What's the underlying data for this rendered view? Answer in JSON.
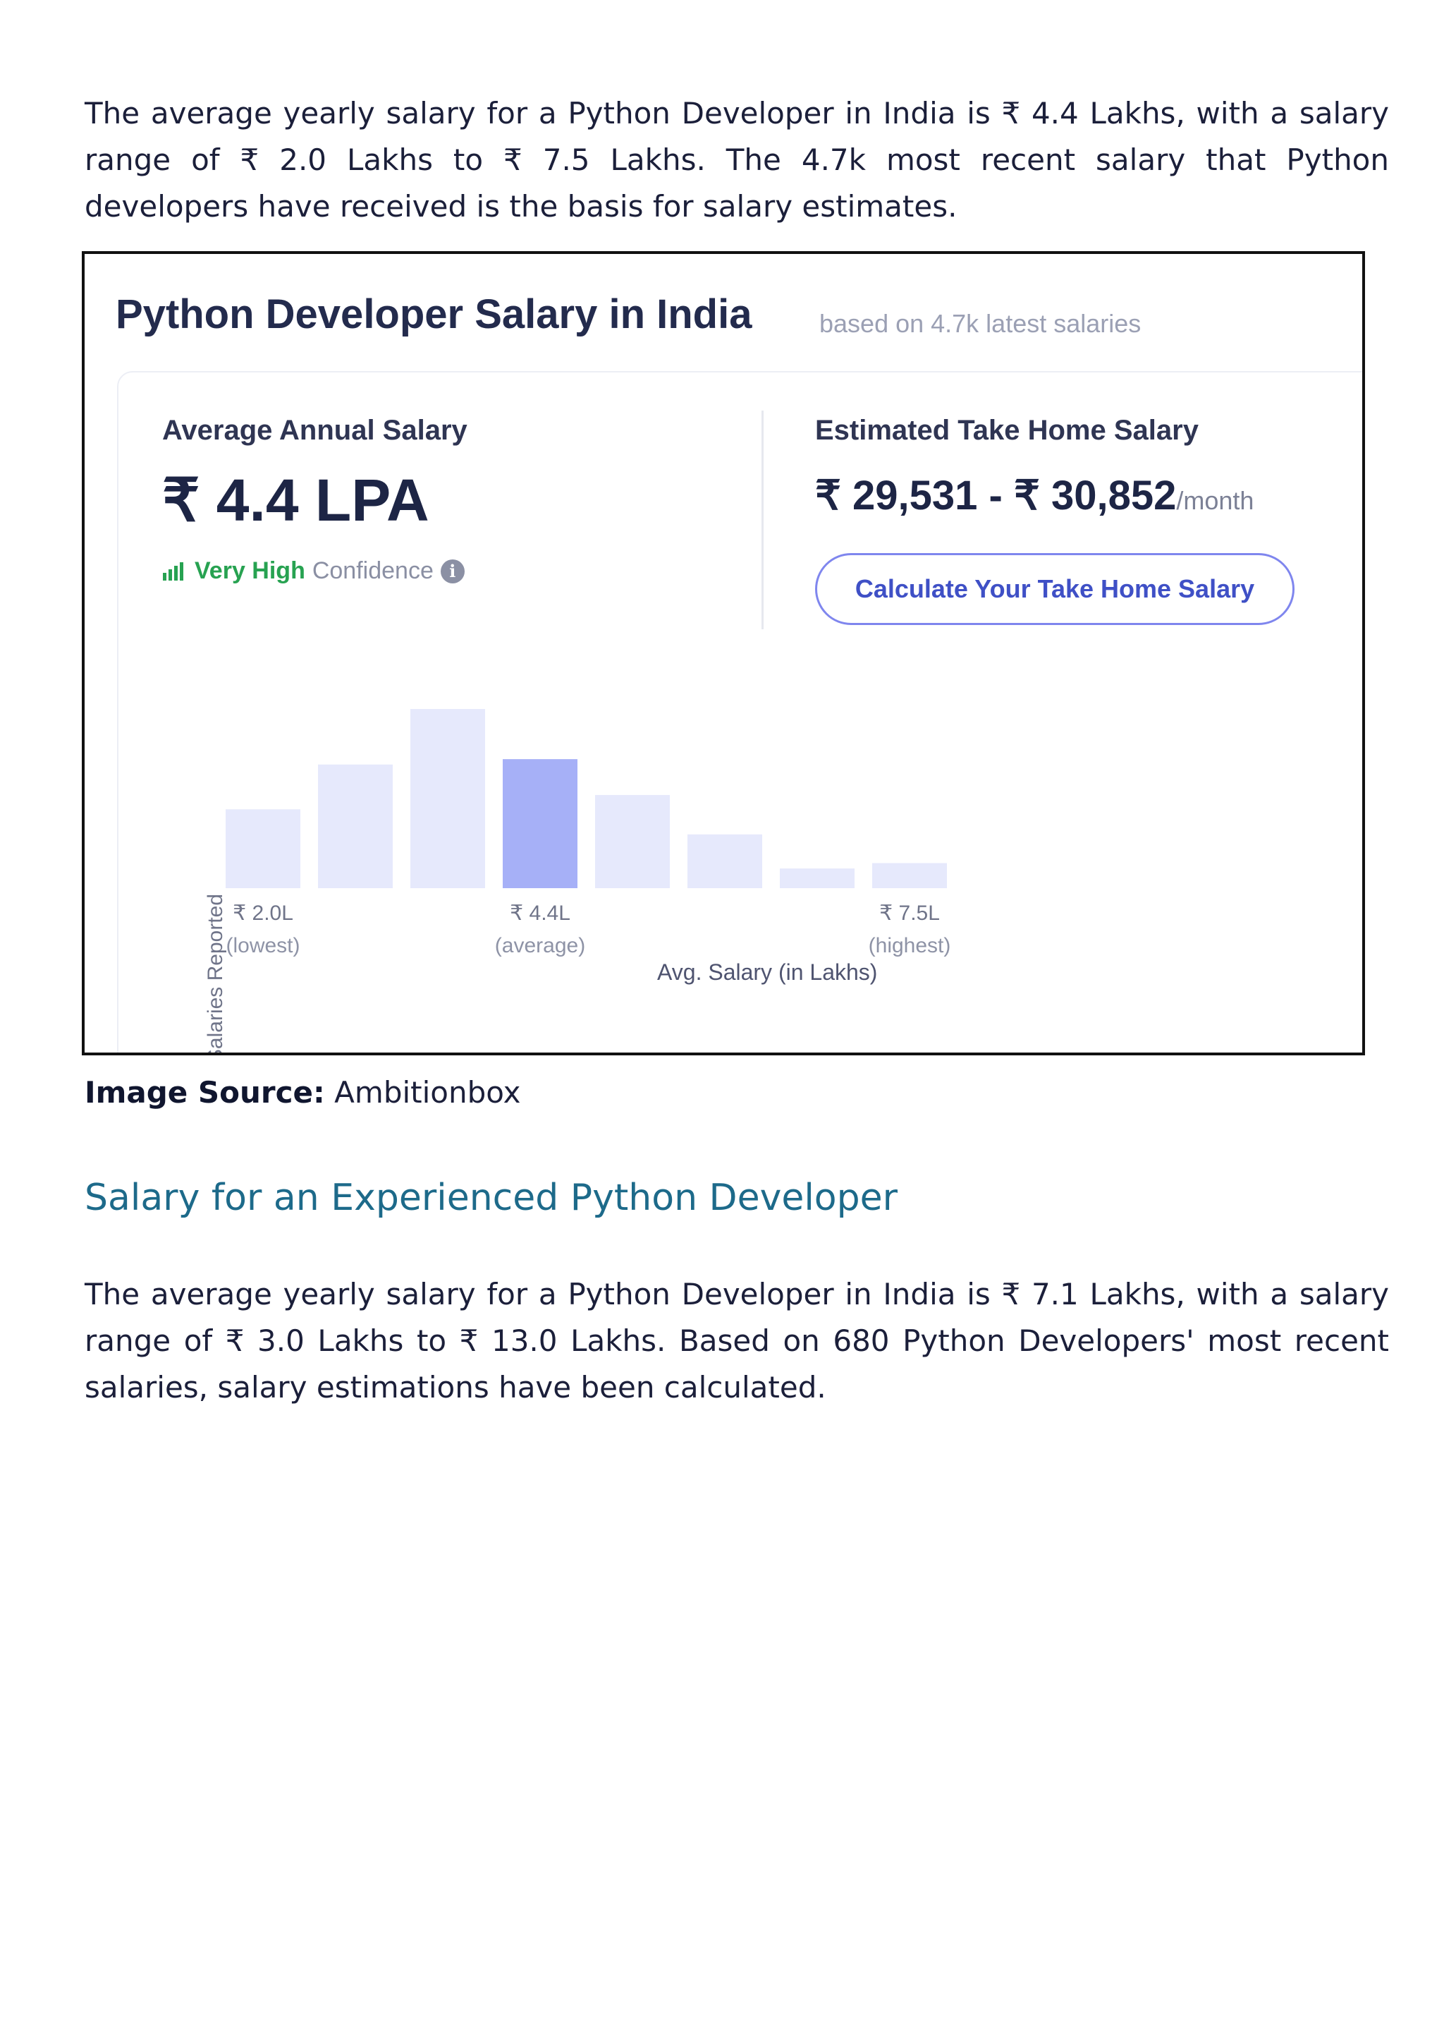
{
  "intro_paragraph": "The average yearly salary for a Python Developer in India is ₹ 4.4 Lakhs, with a salary range of ₹ 2.0 Lakhs to ₹ 7.5 Lakhs. The 4.7k most recent salary that Python developers have received is the basis for salary estimates.",
  "card": {
    "title": "Python Developer Salary in India",
    "subtitle": "based on 4.7k latest salaries",
    "average": {
      "label": "Average Annual Salary",
      "value": "₹ 4.4 LPA",
      "confidence_level": "Very High",
      "confidence_word": "Confidence",
      "info_icon": "info-icon",
      "info_glyph": "i"
    },
    "take_home": {
      "label": "Estimated Take Home Salary",
      "range": "₹ 29,531 - ₹ 30,852",
      "unit": "/month"
    },
    "button_label": "Calculate Your Take Home Salary",
    "accent_color": "#3f50c6",
    "highlight_color": "#a6b0f7",
    "bar_color": "#e6e9fc",
    "confidence_color": "#27a251"
  },
  "chart_data": {
    "type": "bar",
    "ylabel": "Salaries Reported",
    "xlabel": "Avg. Salary (in Lakhs)",
    "values": [
      0.44,
      0.69,
      1.0,
      0.72,
      0.52,
      0.3,
      0.11,
      0.14
    ],
    "highlight_index": 3,
    "tick_labels": [
      {
        "index": 0,
        "label": "₹ 2.0L",
        "sub": "(lowest)"
      },
      {
        "index": 3,
        "label": "₹ 4.4L",
        "sub": "(average)"
      },
      {
        "index": 7,
        "label": "₹ 7.5L",
        "sub": "(highest)"
      }
    ]
  },
  "source": {
    "label": "Image Source:",
    "value": "Ambitionbox"
  },
  "section_heading": "Salary for an Experienced Python Developer",
  "experienced_paragraph": "The average yearly salary for a Python Developer in India is ₹ 7.1 Lakhs, with a salary range of ₹ 3.0 Lakhs to ₹ 13.0 Lakhs. Based on 680 Python Developers' most recent salaries, salary estimations have been calculated."
}
